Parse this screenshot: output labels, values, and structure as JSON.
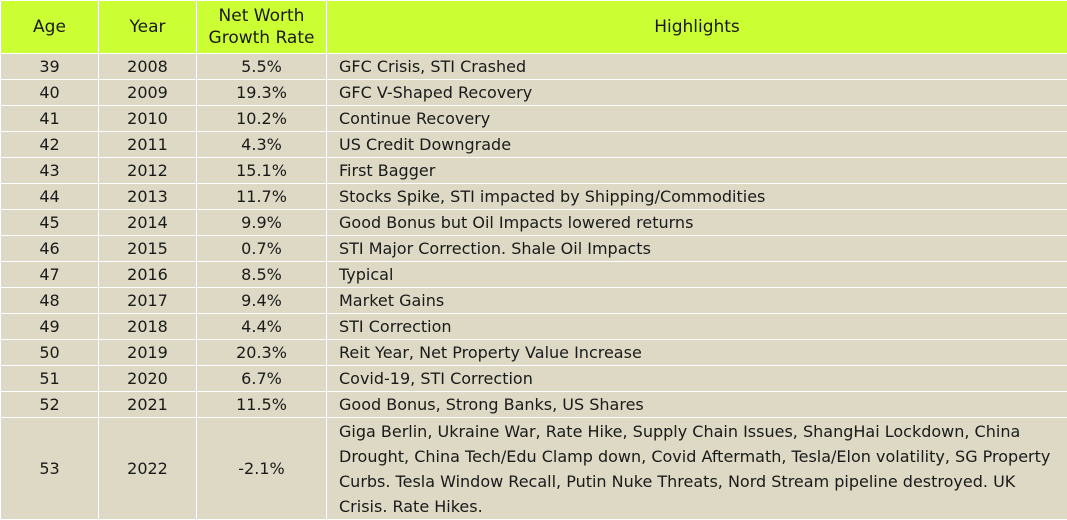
{
  "headers": {
    "age": "Age",
    "year": "Year",
    "rate_line1": "Net Worth",
    "rate_line2": "Growth Rate",
    "highlights": "Highlights"
  },
  "rows": [
    {
      "age": "39",
      "year": "2008",
      "rate": "5.5%",
      "highlight": "GFC Crisis, STI Crashed"
    },
    {
      "age": "40",
      "year": "2009",
      "rate": "19.3%",
      "highlight": "GFC V-Shaped Recovery"
    },
    {
      "age": "41",
      "year": "2010",
      "rate": "10.2%",
      "highlight": "Continue Recovery"
    },
    {
      "age": "42",
      "year": "2011",
      "rate": "4.3%",
      "highlight": "US Credit Downgrade"
    },
    {
      "age": "43",
      "year": "2012",
      "rate": "15.1%",
      "highlight": "First Bagger"
    },
    {
      "age": "44",
      "year": "2013",
      "rate": "11.7%",
      "highlight": "Stocks Spike, STI impacted by Shipping/Commodities"
    },
    {
      "age": "45",
      "year": "2014",
      "rate": "9.9%",
      "highlight": "Good Bonus but Oil Impacts lowered returns"
    },
    {
      "age": "46",
      "year": "2015",
      "rate": "0.7%",
      "highlight": "STI Major Correction. Shale Oil Impacts"
    },
    {
      "age": "47",
      "year": "2016",
      "rate": "8.5%",
      "highlight": "Typical"
    },
    {
      "age": "48",
      "year": "2017",
      "rate": "9.4%",
      "highlight": "Market Gains"
    },
    {
      "age": "49",
      "year": "2018",
      "rate": "4.4%",
      "highlight": "STI Correction"
    },
    {
      "age": "50",
      "year": "2019",
      "rate": "20.3%",
      "highlight": "Reit Year, Net Property Value Increase"
    },
    {
      "age": "51",
      "year": "2020",
      "rate": "6.7%",
      "highlight": "Covid-19, STI Correction"
    },
    {
      "age": "52",
      "year": "2021",
      "rate": "11.5%",
      "highlight": "Good Bonus, Strong Banks, US Shares"
    },
    {
      "age": "53",
      "year": "2022",
      "rate": "-2.1%",
      "highlight": "Giga Berlin, Ukraine War, Rate Hike, Supply Chain Issues, ShangHai Lockdown, China Drought, China Tech/Edu Clamp down, Covid Aftermath, Tesla/Elon volatility, SG Property Curbs. Tesla Window Recall, Putin Nuke Threats, Nord Stream pipeline destroyed. UK Crisis. Rate Hikes."
    }
  ],
  "colors": {
    "header_bg": "#ccff33",
    "row_bg": "#ddd9c4"
  }
}
